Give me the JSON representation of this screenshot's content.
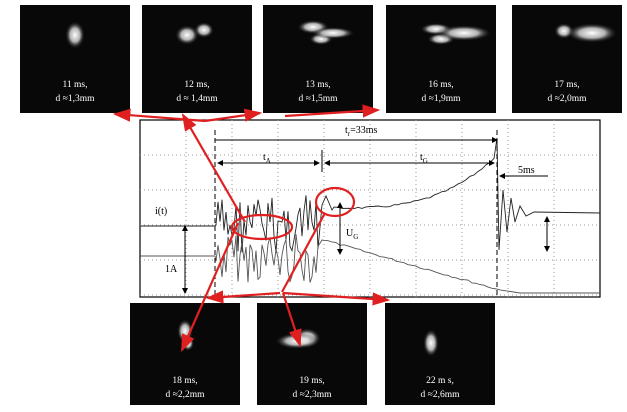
{
  "top_photos": [
    {
      "time": "11 ms,",
      "distance": "d ≈1,3mm"
    },
    {
      "time": "12 ms,",
      "distance": "d ≈ 1,4mm"
    },
    {
      "time": "13 ms,",
      "distance": "d ≈1,5mm"
    },
    {
      "time": "16 ms,",
      "distance": "d ≈1,9mm"
    },
    {
      "time": "17 ms,",
      "distance": "d ≈2,0mm"
    }
  ],
  "bottom_photos": [
    {
      "time": "18 ms,",
      "distance": "d ≈2,2mm"
    },
    {
      "time": "19 ms,",
      "distance": "d ≈2,3mm"
    },
    {
      "time": "22 m  s,",
      "distance": "d ≈2,6mm"
    }
  ],
  "scope": {
    "tr": {
      "base": "t",
      "sub": "r",
      "rest": "=33ms"
    },
    "tA": {
      "base": "t",
      "sub": "A"
    },
    "tG": {
      "base": "t",
      "sub": "G"
    },
    "step": "5ms",
    "current": "i(t)",
    "UG": {
      "base": "U",
      "sub": "G"
    },
    "scale": "1A"
  }
}
